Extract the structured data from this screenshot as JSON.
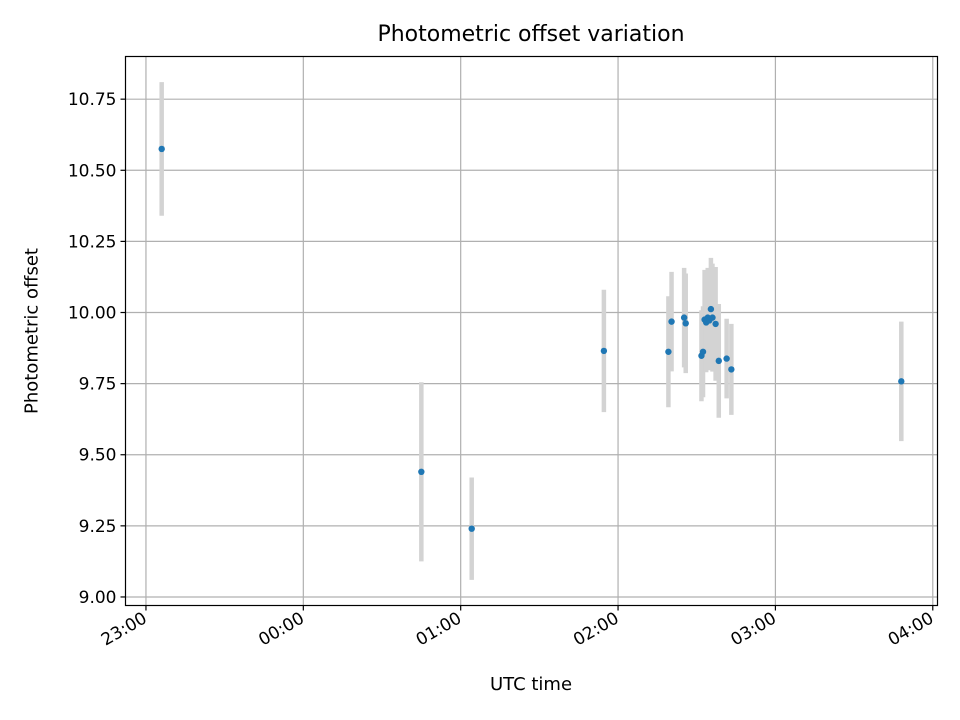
{
  "chart_data": {
    "type": "scatter",
    "title": "Photometric offset variation",
    "xlabel": "UTC time",
    "ylabel": "Photometric offset",
    "xlim_hours": [
      -1.13,
      4.03
    ],
    "ylim": [
      8.97,
      10.9
    ],
    "x_ticks": [
      {
        "value": -1.0,
        "label": "23:00"
      },
      {
        "value": 0.0,
        "label": "00:00"
      },
      {
        "value": 1.0,
        "label": "01:00"
      },
      {
        "value": 2.0,
        "label": "02:00"
      },
      {
        "value": 3.0,
        "label": "03:00"
      },
      {
        "value": 4.0,
        "label": "04:00"
      }
    ],
    "y_ticks": [
      {
        "value": 9.0,
        "label": "9.00"
      },
      {
        "value": 9.25,
        "label": "9.25"
      },
      {
        "value": 9.5,
        "label": "9.50"
      },
      {
        "value": 9.75,
        "label": "9.75"
      },
      {
        "value": 10.0,
        "label": "10.00"
      },
      {
        "value": 10.25,
        "label": "10.25"
      },
      {
        "value": 10.5,
        "label": "10.50"
      },
      {
        "value": 10.75,
        "label": "10.75"
      }
    ],
    "grid": true,
    "point_color": "#1f77b4",
    "errorbar_color": "#d3d3d3",
    "points": [
      {
        "time": "23:06",
        "x": -0.9,
        "y": 10.575,
        "err": 0.235
      },
      {
        "time": "00:45",
        "x": 0.75,
        "y": 9.44,
        "err": 0.315
      },
      {
        "time": "01:04",
        "x": 1.07,
        "y": 9.24,
        "err": 0.18
      },
      {
        "time": "01:55",
        "x": 1.91,
        "y": 9.865,
        "err": 0.215
      },
      {
        "time": "02:19",
        "x": 2.32,
        "y": 9.862,
        "err": 0.195
      },
      {
        "time": "02:20",
        "x": 2.34,
        "y": 9.968,
        "err": 0.175
      },
      {
        "time": "02:25",
        "x": 2.42,
        "y": 9.982,
        "err": 0.175
      },
      {
        "time": "02:26",
        "x": 2.43,
        "y": 9.962,
        "err": 0.175
      },
      {
        "time": "02:32",
        "x": 2.53,
        "y": 9.848,
        "err": 0.16
      },
      {
        "time": "02:32",
        "x": 2.54,
        "y": 9.862,
        "err": 0.16
      },
      {
        "time": "02:33",
        "x": 2.55,
        "y": 9.975,
        "err": 0.175
      },
      {
        "time": "02:33",
        "x": 2.56,
        "y": 9.965,
        "err": 0.175
      },
      {
        "time": "02:34",
        "x": 2.57,
        "y": 9.982,
        "err": 0.175
      },
      {
        "time": "02:35",
        "x": 2.58,
        "y": 9.972,
        "err": 0.175
      },
      {
        "time": "02:35",
        "x": 2.59,
        "y": 10.012,
        "err": 0.18
      },
      {
        "time": "02:36",
        "x": 2.6,
        "y": 9.982,
        "err": 0.19
      },
      {
        "time": "02:37",
        "x": 2.62,
        "y": 9.96,
        "err": 0.2
      },
      {
        "time": "02:38",
        "x": 2.64,
        "y": 9.83,
        "err": 0.2
      },
      {
        "time": "02:41",
        "x": 2.69,
        "y": 9.838,
        "err": 0.14
      },
      {
        "time": "02:43",
        "x": 2.72,
        "y": 9.8,
        "err": 0.16
      },
      {
        "time": "03:48",
        "x": 3.8,
        "y": 9.758,
        "err": 0.21
      }
    ]
  }
}
